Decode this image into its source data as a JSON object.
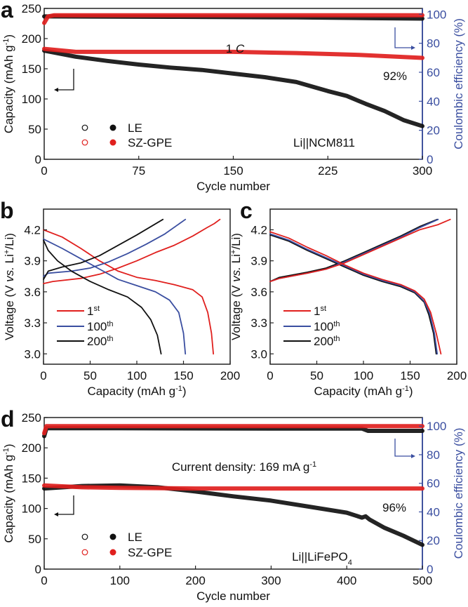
{
  "colors": {
    "le": "#111111",
    "sz": "#e0201e",
    "ce_axis": "#3a4ea0",
    "c1": "#e0201e",
    "c100": "#3a4ea0",
    "c200": "#111111"
  },
  "chart_data": [
    {
      "id": "a",
      "type": "scatter",
      "letter": "a",
      "xlabel": "Cycle number",
      "ylabel": "Capacity (mAh g",
      "ylabel_sup": "-1",
      "ylabel_end": ")",
      "y2label": "Coulombic efficiency (%)",
      "xlim": [
        0,
        300
      ],
      "ylim": [
        0,
        250
      ],
      "y2lim": [
        0,
        104
      ],
      "xticks": [
        0,
        75,
        150,
        225,
        300
      ],
      "yticks": [
        0,
        50,
        100,
        150,
        200,
        250
      ],
      "y2ticks": [
        0,
        20,
        40,
        60,
        80,
        100
      ],
      "annotations": {
        "rate_num": "1 ",
        "rate_unit": "C",
        "retention": "92%",
        "cell": "Li||NCM811"
      },
      "legend": [
        "LE",
        "SZ-GPE"
      ],
      "series": [
        {
          "name": "LE capacity",
          "axis": "left",
          "color": "#111111",
          "x": [
            0,
            25,
            50,
            75,
            100,
            125,
            150,
            175,
            200,
            225,
            240,
            255,
            270,
            285,
            300
          ],
          "y": [
            180,
            170,
            163,
            157,
            152,
            148,
            142,
            136,
            128,
            113,
            105,
            92,
            80,
            65,
            55
          ]
        },
        {
          "name": "SZ-GPE capacity",
          "axis": "left",
          "color": "#e0201e",
          "x": [
            0,
            25,
            100,
            150,
            200,
            250,
            300
          ],
          "y": [
            183,
            178,
            178,
            178,
            176,
            173,
            168
          ]
        },
        {
          "name": "LE CE",
          "axis": "right",
          "color": "#111111",
          "x": [
            0,
            5,
            100,
            200,
            260,
            300
          ],
          "y": [
            98.5,
            98.5,
            98.2,
            97.8,
            97.3,
            97.0
          ]
        },
        {
          "name": "SZ-GPE CE",
          "axis": "right",
          "color": "#e0201e",
          "x": [
            0,
            3,
            8,
            300
          ],
          "y": [
            94,
            98.5,
            99.3,
            99.3
          ]
        }
      ]
    },
    {
      "id": "b",
      "type": "line",
      "letter": "b",
      "xlabel": "Capacity (mAh g",
      "xlabel_sup": "-1",
      "xlabel_end": ")",
      "ylabel": "Voltage (V ",
      "ylabel_it": "vs.",
      "ylabel_mid": " Li",
      "ylabel_sup": "+",
      "ylabel_end": "/Li)",
      "xlim": [
        0,
        200
      ],
      "ylim": [
        2.9,
        4.4
      ],
      "xticks": [
        0,
        50,
        100,
        150,
        200
      ],
      "yticks": [
        "3.0",
        "3.3",
        "3.6",
        "3.9",
        "4.2"
      ],
      "legend": [
        {
          "num": "1",
          "sup": "st"
        },
        {
          "num": "100",
          "sup": "th"
        },
        {
          "num": "200",
          "sup": "th"
        }
      ],
      "series": [
        {
          "name": "1st discharge",
          "color": "#e0201e",
          "x": [
            0,
            20,
            40,
            60,
            80,
            100,
            120,
            140,
            160,
            170,
            176,
            180,
            182
          ],
          "y": [
            4.2,
            4.13,
            4.02,
            3.9,
            3.8,
            3.74,
            3.71,
            3.67,
            3.62,
            3.55,
            3.4,
            3.2,
            3.0
          ]
        },
        {
          "name": "1st charge",
          "color": "#e0201e",
          "x": [
            0,
            10,
            40,
            60,
            80,
            100,
            120,
            140,
            160,
            175,
            183,
            189
          ],
          "y": [
            3.68,
            3.7,
            3.73,
            3.77,
            3.83,
            3.9,
            3.98,
            4.05,
            4.14,
            4.22,
            4.26,
            4.3
          ]
        },
        {
          "name": "100th discharge",
          "color": "#3a4ea0",
          "x": [
            0,
            20,
            40,
            60,
            80,
            100,
            120,
            135,
            145,
            150,
            152
          ],
          "y": [
            4.11,
            4.02,
            3.92,
            3.82,
            3.72,
            3.66,
            3.6,
            3.52,
            3.4,
            3.2,
            3.0
          ]
        },
        {
          "name": "100th charge",
          "color": "#3a4ea0",
          "x": [
            0,
            5,
            30,
            50,
            70,
            90,
            110,
            130,
            152
          ],
          "y": [
            3.75,
            3.78,
            3.8,
            3.83,
            3.89,
            3.97,
            4.06,
            4.16,
            4.3
          ]
        },
        {
          "name": "200th discharge",
          "color": "#111111",
          "x": [
            0,
            5,
            15,
            30,
            50,
            70,
            90,
            105,
            115,
            122,
            126
          ],
          "y": [
            4.1,
            4.0,
            3.9,
            3.8,
            3.7,
            3.62,
            3.55,
            3.45,
            3.33,
            3.18,
            3.0
          ]
        },
        {
          "name": "200th charge",
          "color": "#111111",
          "x": [
            0,
            5,
            20,
            40,
            60,
            80,
            100,
            128
          ],
          "y": [
            3.72,
            3.8,
            3.84,
            3.88,
            3.95,
            4.05,
            4.15,
            4.3
          ]
        }
      ]
    },
    {
      "id": "c",
      "type": "line",
      "letter": "c",
      "xlabel": "Capacity (mAh g",
      "xlabel_sup": "-1",
      "xlabel_end": ")",
      "ylabel": "Voltage (V ",
      "ylabel_it": "vs.",
      "ylabel_mid": " Li",
      "ylabel_sup": "+",
      "ylabel_end": "/Li)",
      "xlim": [
        0,
        200
      ],
      "ylim": [
        2.9,
        4.4
      ],
      "xticks": [
        0,
        50,
        100,
        150,
        200
      ],
      "yticks": [
        "3.0",
        "3.3",
        "3.6",
        "3.9",
        "4.2"
      ],
      "legend": [
        {
          "num": "1",
          "sup": "st"
        },
        {
          "num": "100",
          "sup": "th"
        },
        {
          "num": "200",
          "sup": "th"
        }
      ],
      "series": [
        {
          "name": "200th discharge",
          "color": "#111111",
          "x": [
            0,
            20,
            40,
            60,
            80,
            100,
            120,
            140,
            155,
            165,
            170,
            175,
            178
          ],
          "y": [
            4.15,
            4.09,
            4.0,
            3.92,
            3.84,
            3.76,
            3.7,
            3.65,
            3.59,
            3.5,
            3.38,
            3.2,
            3.0
          ]
        },
        {
          "name": "200th charge",
          "color": "#111111",
          "x": [
            0,
            10,
            40,
            60,
            80,
            100,
            120,
            140,
            160,
            179
          ],
          "y": [
            3.7,
            3.74,
            3.79,
            3.83,
            3.9,
            3.98,
            4.06,
            4.14,
            4.23,
            4.3
          ]
        },
        {
          "name": "100th discharge",
          "color": "#3a4ea0",
          "x": [
            0,
            20,
            40,
            60,
            80,
            100,
            120,
            140,
            155,
            165,
            171,
            176,
            179
          ],
          "y": [
            4.16,
            4.1,
            4.01,
            3.93,
            3.85,
            3.77,
            3.71,
            3.66,
            3.6,
            3.51,
            3.39,
            3.2,
            3.0
          ]
        },
        {
          "name": "100th charge",
          "color": "#3a4ea0",
          "x": [
            0,
            10,
            40,
            60,
            80,
            100,
            120,
            140,
            160,
            180
          ],
          "y": [
            3.7,
            3.73,
            3.78,
            3.82,
            3.89,
            3.97,
            4.05,
            4.13,
            4.22,
            4.3
          ]
        },
        {
          "name": "1st discharge",
          "color": "#e0201e",
          "x": [
            0,
            20,
            40,
            60,
            80,
            100,
            120,
            140,
            155,
            165,
            172,
            178,
            183
          ],
          "y": [
            4.18,
            4.12,
            4.03,
            3.95,
            3.86,
            3.78,
            3.72,
            3.67,
            3.61,
            3.53,
            3.4,
            3.2,
            3.0
          ]
        },
        {
          "name": "1st charge",
          "color": "#e0201e",
          "x": [
            0,
            10,
            40,
            60,
            80,
            100,
            120,
            140,
            160,
            180,
            193
          ],
          "y": [
            3.7,
            3.73,
            3.78,
            3.82,
            3.88,
            3.96,
            4.04,
            4.12,
            4.2,
            4.25,
            4.3
          ]
        }
      ]
    },
    {
      "id": "d",
      "type": "scatter",
      "letter": "d",
      "xlabel": "Cycle number",
      "ylabel": "Capacity (mAh g",
      "ylabel_sup": "-1",
      "ylabel_end": ")",
      "y2label": "Coulombic efficiency (%)",
      "xlim": [
        0,
        500
      ],
      "ylim": [
        0,
        250
      ],
      "y2lim": [
        0,
        106
      ],
      "xticks": [
        0,
        100,
        200,
        300,
        400,
        500
      ],
      "yticks": [
        0,
        50,
        100,
        150,
        200,
        250
      ],
      "y2ticks": [
        0,
        20,
        40,
        60,
        80,
        100
      ],
      "annotations": {
        "current": "Current density: 169 mA g",
        "current_sup": "-1",
        "retention": "96%",
        "cell": "Li||LiFePO",
        "cell_sub": "4"
      },
      "legend": [
        "LE",
        "SZ-GPE"
      ],
      "series": [
        {
          "name": "LE capacity",
          "axis": "left",
          "color": "#111111",
          "x": [
            0,
            50,
            100,
            150,
            200,
            250,
            300,
            350,
            400,
            420,
            425,
            430,
            450,
            475,
            500
          ],
          "y": [
            133,
            137,
            138,
            135,
            128,
            120,
            113,
            103,
            93,
            85,
            87,
            82,
            68,
            55,
            40
          ]
        },
        {
          "name": "SZ-GPE capacity",
          "axis": "left",
          "color": "#e0201e",
          "x": [
            0,
            50,
            100,
            200,
            500
          ],
          "y": [
            138,
            135,
            134,
            133,
            133
          ]
        },
        {
          "name": "LE CE",
          "axis": "right",
          "color": "#111111",
          "x": [
            0,
            3,
            100,
            300,
            420,
            428,
            500
          ],
          "y": [
            93,
            98.5,
            98.5,
            98.3,
            98.3,
            96.7,
            96.7
          ]
        },
        {
          "name": "SZ-GPE CE",
          "axis": "right",
          "color": "#e0201e",
          "x": [
            0,
            3,
            500
          ],
          "y": [
            95,
            100,
            100
          ]
        }
      ]
    }
  ]
}
